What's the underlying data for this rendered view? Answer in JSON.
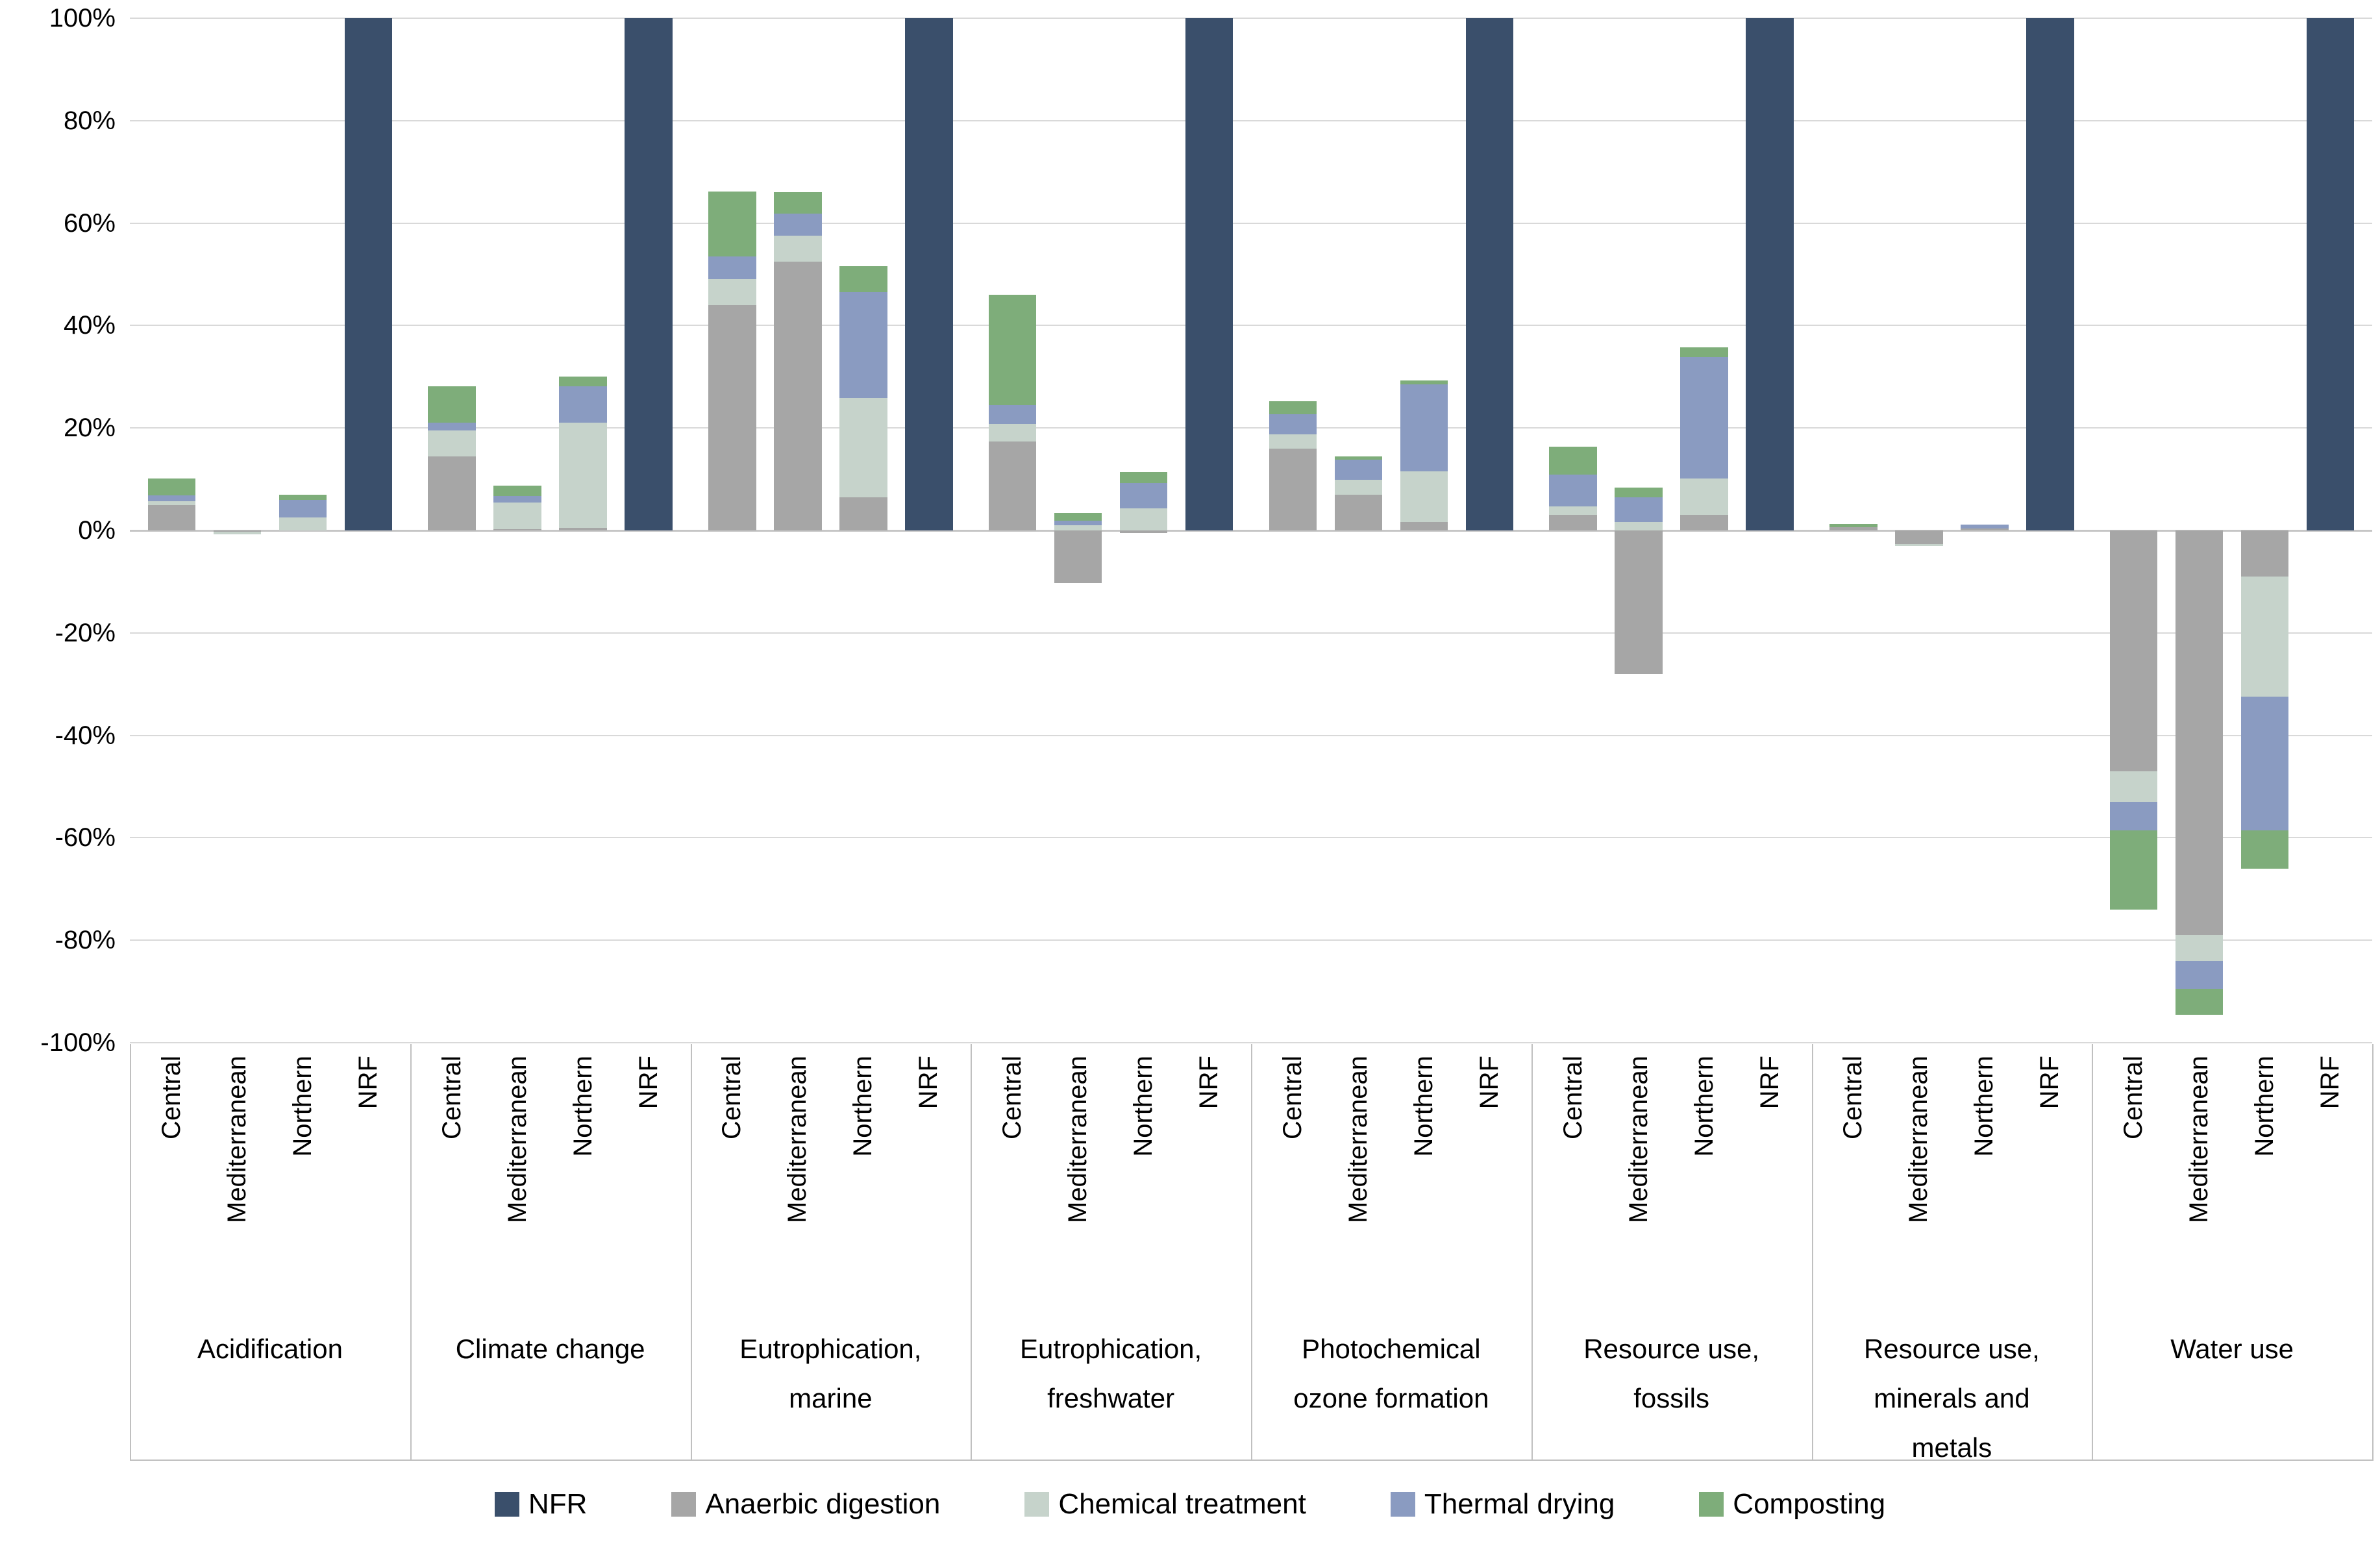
{
  "chart_data": {
    "type": "bar",
    "subtype": "stacked-bar-with-negatives",
    "unit": "percent",
    "ylim": [
      -100,
      100
    ],
    "grid": "horizontal",
    "yticks": [
      {
        "value": 100,
        "label": "100%"
      },
      {
        "value": 80,
        "label": "80%"
      },
      {
        "value": 60,
        "label": "60%"
      },
      {
        "value": 40,
        "label": "40%"
      },
      {
        "value": 20,
        "label": "20%"
      },
      {
        "value": 0,
        "label": "0%"
      },
      {
        "value": -20,
        "label": "-20%"
      },
      {
        "value": -40,
        "label": "-40%"
      },
      {
        "value": -60,
        "label": "-60%"
      },
      {
        "value": -80,
        "label": "-80%"
      },
      {
        "value": -100,
        "label": "-100%"
      }
    ],
    "series": [
      {
        "name": "NFR",
        "color": "#3a4f6b"
      },
      {
        "name": "Anaerbic digestion",
        "color": "#a6a6a6"
      },
      {
        "name": "Chemical treatment",
        "color": "#c6d3cb"
      },
      {
        "name": "Thermal drying",
        "color": "#8a9bc1"
      },
      {
        "name": "Composting",
        "color": "#7ead7a"
      }
    ],
    "regions": [
      "Central",
      "Mediterranean",
      "Northern",
      "NRF"
    ],
    "groups": [
      {
        "label": "Acidification",
        "bars": [
          {
            "region": "Central",
            "values": [
              0,
              5,
              0.7,
              1.1,
              3.3
            ]
          },
          {
            "region": "Mediterranean",
            "values": [
              0,
              -0.3,
              -0.4,
              0,
              0
            ]
          },
          {
            "region": "Northern",
            "values": [
              0,
              0,
              2.5,
              3.5,
              1
            ]
          },
          {
            "region": "NRF",
            "values": [
              100,
              0,
              0,
              0,
              0
            ]
          }
        ]
      },
      {
        "label": "Climate change",
        "bars": [
          {
            "region": "Central",
            "values": [
              0,
              14.5,
              5,
              1.6,
              7
            ]
          },
          {
            "region": "Mediterranean",
            "values": [
              0,
              0.3,
              5.2,
              1.2,
              2.1
            ]
          },
          {
            "region": "Northern",
            "values": [
              0,
              0.5,
              20.5,
              7.2,
              1.9
            ]
          },
          {
            "region": "NRF",
            "values": [
              100,
              0,
              0,
              0,
              0
            ]
          }
        ]
      },
      {
        "label": "Eutrophication, marine",
        "bars": [
          {
            "region": "Central",
            "values": [
              0,
              44,
              5,
              4.5,
              12.7
            ]
          },
          {
            "region": "Mediterranean",
            "values": [
              0,
              52.5,
              5,
              4.3,
              4.2
            ]
          },
          {
            "region": "Northern",
            "values": [
              0,
              6.5,
              19.4,
              20.6,
              5.1
            ]
          },
          {
            "region": "NRF",
            "values": [
              100,
              0,
              0,
              0,
              0
            ]
          }
        ]
      },
      {
        "label": "Eutrophication, freshwater",
        "bars": [
          {
            "region": "Central",
            "values": [
              0,
              17.4,
              3.4,
              3.7,
              21.5
            ]
          },
          {
            "region": "Mediterranean",
            "values": [
              0,
              -10.3,
              1,
              0.9,
              1.5
            ]
          },
          {
            "region": "Northern",
            "values": [
              0,
              -0.5,
              4.3,
              5,
              2.1
            ]
          },
          {
            "region": "NRF",
            "values": [
              100,
              0,
              0,
              0,
              0
            ]
          }
        ]
      },
      {
        "label": "Photochemical ozone formation",
        "bars": [
          {
            "region": "Central",
            "values": [
              0,
              16,
              2.8,
              3.9,
              2.5
            ]
          },
          {
            "region": "Mediterranean",
            "values": [
              0,
              7,
              2.9,
              3.9,
              0.7
            ]
          },
          {
            "region": "Northern",
            "values": [
              0,
              1.7,
              9.8,
              17,
              0.8
            ]
          },
          {
            "region": "NRF",
            "values": [
              100,
              0,
              0,
              0,
              0
            ]
          }
        ]
      },
      {
        "label": "Resource use, fossils",
        "bars": [
          {
            "region": "Central",
            "values": [
              0,
              3,
              1.7,
              6.2,
              5.5
            ]
          },
          {
            "region": "Mediterranean",
            "values": [
              0,
              -28,
              1.6,
              4.9,
              1.9
            ]
          },
          {
            "region": "Northern",
            "values": [
              0,
              3,
              7.2,
              23.6,
              2
            ]
          },
          {
            "region": "NRF",
            "values": [
              100,
              0,
              0,
              0,
              0
            ]
          }
        ]
      },
      {
        "label": "Resource use, minerals and metals",
        "bars": [
          {
            "region": "Central",
            "values": [
              0,
              0.6,
              0,
              0,
              0.7
            ]
          },
          {
            "region": "Mediterranean",
            "values": [
              0,
              -2.6,
              -0.5,
              0,
              0
            ]
          },
          {
            "region": "Northern",
            "values": [
              0,
              0.4,
              0,
              0.7,
              0
            ]
          },
          {
            "region": "NRF",
            "values": [
              100,
              0,
              0,
              0,
              0
            ]
          }
        ]
      },
      {
        "label": "Water use",
        "bars": [
          {
            "region": "Central",
            "values": [
              0,
              -47,
              -6,
              -5.5,
              -15.5
            ]
          },
          {
            "region": "Mediterranean",
            "values": [
              0,
              -79,
              -5,
              -5.5,
              -5
            ]
          },
          {
            "region": "Northern",
            "values": [
              0,
              -9,
              -23.5,
              -26,
              -7.5
            ]
          },
          {
            "region": "NRF",
            "values": [
              100,
              0,
              0,
              0,
              0
            ]
          }
        ]
      }
    ],
    "legend": {
      "position": "bottom",
      "items": [
        "NFR",
        "Anaerbic digestion",
        "Chemical treatment",
        "Thermal drying",
        "Composting"
      ]
    }
  }
}
